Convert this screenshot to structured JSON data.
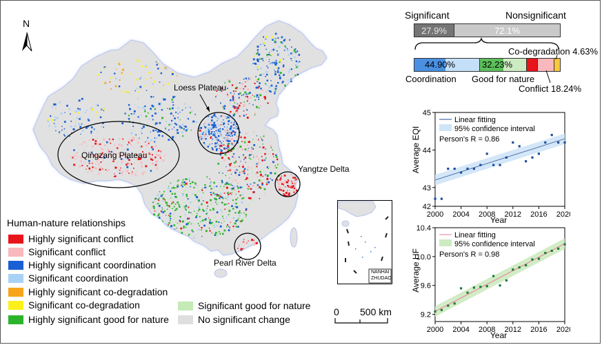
{
  "north_label": "N",
  "regions": {
    "loess": "Loess Plateau",
    "qingzang": "Qingzang Plateau",
    "yangtze": "Yangtze Delta",
    "pearl": "Pearl River Delta"
  },
  "inset_label_1": "NANHAI",
  "inset_label_2": "ZHUDAO",
  "scale": {
    "zero": "0",
    "distance": "500 km"
  },
  "legend": {
    "title": "Human-nature relationships",
    "items": [
      {
        "label": "Highly significant conflict",
        "color": "#e8141b"
      },
      {
        "label": "Significant conflict",
        "color": "#f9b8bd"
      },
      {
        "label": "Highly significant coordination",
        "color": "#1a5fd4"
      },
      {
        "label": "Significant coordination",
        "color": "#a8d2f5"
      },
      {
        "label": "Highly significant co-degradation",
        "color": "#f7a51c"
      },
      {
        "label": "Significant co-degradation",
        "color": "#fbf01b"
      },
      {
        "label": "Highly significant good for nature",
        "color": "#2db42d"
      },
      {
        "label": "Significant good for nature",
        "color": "#c5eab5"
      },
      {
        "label": "No significant change",
        "color": "#dedede"
      }
    ]
  },
  "proportion_bars": {
    "top_left_label": "Significant",
    "top_right_label": "Nonsignificant",
    "significant_share": "27.9%",
    "nonsignificant_share": "72.1%",
    "coordination_value": "44.90%",
    "good_for_nature_value": "32.23%",
    "coordination_label": "Coordination",
    "good_for_nature_label": "Good for nature",
    "co_degradation_label": "Co-degradation 4.63%",
    "conflict_label": "Conflict 18.24%"
  },
  "chart_data": [
    {
      "type": "scatter",
      "ylabel": "Average EQI",
      "xlabel": "Year",
      "xlim": [
        2000,
        2020
      ],
      "ylim": [
        42.5,
        45
      ],
      "xticks": [
        "2000",
        "2004",
        "2008",
        "2012",
        "2016",
        "2020"
      ],
      "yticks": [
        "42",
        "43",
        "44",
        "45"
      ],
      "legend": [
        "Linear fitting",
        "95% confidence interval"
      ],
      "annotation": "Person's R = 0.86",
      "fit": [
        [
          2000,
          43.2
        ],
        [
          2020,
          44.3
        ]
      ],
      "x": [
        2000,
        2001,
        2002,
        2003,
        2004,
        2005,
        2006,
        2007,
        2008,
        2009,
        2010,
        2011,
        2012,
        2013,
        2014,
        2015,
        2016,
        2017,
        2018,
        2019,
        2020
      ],
      "values": [
        42.7,
        42.7,
        43.5,
        43.5,
        43.4,
        43.5,
        43.5,
        43.6,
        43.9,
        43.6,
        43.6,
        43.8,
        44.2,
        44.1,
        43.7,
        43.8,
        43.9,
        44.2,
        44.4,
        44.2,
        44.2
      ],
      "color": "#1f4e9a",
      "band_color": "#cfe4f7"
    },
    {
      "type": "scatter",
      "ylabel": "Average HF",
      "xlabel": "Year",
      "xlim": [
        2000,
        2020
      ],
      "ylim": [
        9.1,
        10.4
      ],
      "xticks": [
        "2000",
        "2004",
        "2008",
        "2012",
        "2016",
        "2020"
      ],
      "yticks": [
        "9.2",
        "9.6",
        "10.0",
        "10.4"
      ],
      "legend": [
        "Linear fitting",
        "95% confidence interval"
      ],
      "annotation": "Person's R = 0.98",
      "fit": [
        [
          2000,
          9.24
        ],
        [
          2020,
          10.18
        ]
      ],
      "x": [
        2000,
        2001,
        2002,
        2003,
        2004,
        2005,
        2006,
        2007,
        2008,
        2009,
        2010,
        2011,
        2012,
        2013,
        2014,
        2015,
        2016,
        2017,
        2018,
        2019,
        2020
      ],
      "values": [
        9.24,
        9.26,
        9.32,
        9.35,
        9.56,
        9.5,
        9.57,
        9.58,
        9.59,
        9.73,
        9.6,
        9.67,
        9.82,
        9.85,
        9.88,
        9.96,
        9.97,
        10.05,
        10.08,
        10.11,
        10.17
      ],
      "color": "#1f7a3a",
      "band_color": "#cdeac0"
    }
  ]
}
